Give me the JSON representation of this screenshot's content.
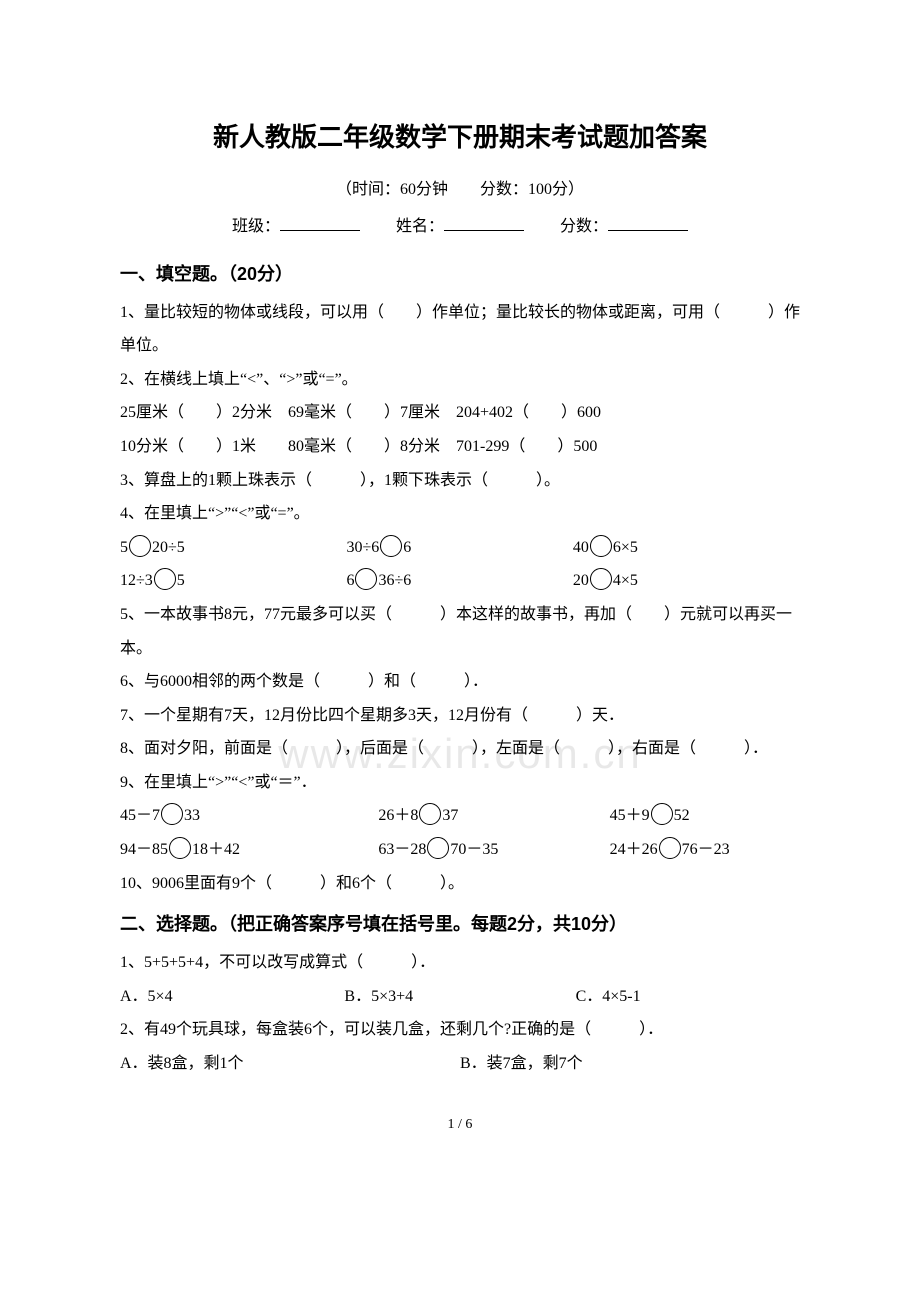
{
  "title": "新人教版二年级数学下册期末考试题加答案",
  "subtitle": "（时间：60分钟　　分数：100分）",
  "fillrow": {
    "class_label": "班级：",
    "name_label": "姓名：",
    "score_label": "分数："
  },
  "section1": {
    "head": "一、填空题。（20分）"
  },
  "q1": "1、量比较短的物体或线段，可以用（　　）作单位；量比较长的物体或距离，可用（　　　）作单位。",
  "q2": "2、在横线上填上“<”、“>”或“=”。",
  "q2a": "25厘米（　　）2分米　69毫米（　　）7厘米　204+402（　　）600",
  "q2b": "10分米（　　）1米　　80毫米（　　）8分米　701-299（　　）500",
  "q3": "3、算盘上的1颗上珠表示（　　　），1颗下珠表示（　　　）。",
  "q4": "4、在里填上“>”“<”或“=”。",
  "q4r1": {
    "a": "5",
    "a2": "20÷5",
    "b": "30÷6",
    "b2": "6",
    "c": "40",
    "c2": "6×5"
  },
  "q4r2": {
    "a": "12÷3",
    "a2": "5",
    "b": "6",
    "b2": "36÷6",
    "c": "20",
    "c2": "4×5"
  },
  "q5": "5、一本故事书8元，77元最多可以买（　　　）本这样的故事书，再加（　　）元就可以再买一本。",
  "q6": "6、与6000相邻的两个数是（　　　）和（　　　）．",
  "q7": "7、一个星期有7天，12月份比四个星期多3天，12月份有（　　　）天．",
  "q8": "8、面对夕阳，前面是（　　　），后面是（　　　），左面是（　　　），右面是（　　　）．",
  "q9": "9、在里填上“>”“<”或“＝”．",
  "q9r1": {
    "a1": "45－7",
    "a2": "33",
    "b1": "26＋8",
    "b2": "37",
    "c1": "45＋9",
    "c2": "52"
  },
  "q9r2": {
    "a1": "94－85",
    "a2": "18＋42",
    "b1": "63－28",
    "b2": "70－35",
    "c1": "24＋26",
    "c2": "76－23"
  },
  "q10": "10、9006里面有9个（　　　）和6个（　　　）。",
  "section2": {
    "head": "二、选择题。（把正确答案序号填在括号里。每题2分，共10分）"
  },
  "s2q1": "1、5+5+5+4，不可以改写成算式（　　　）．",
  "s2q1o": {
    "a": "A．5×4",
    "b": "B．5×3+4",
    "c": "C．4×5-1"
  },
  "s2q2": "2、有49个玩具球，每盒装6个，可以装几盒，还剩几个?正确的是（　　　）．",
  "s2q2o": {
    "a": "A．装8盒，剩1个",
    "b": "B．装7盒，剩7个"
  },
  "watermark": "www.zixin.com.cn",
  "pagenum": "1 / 6"
}
